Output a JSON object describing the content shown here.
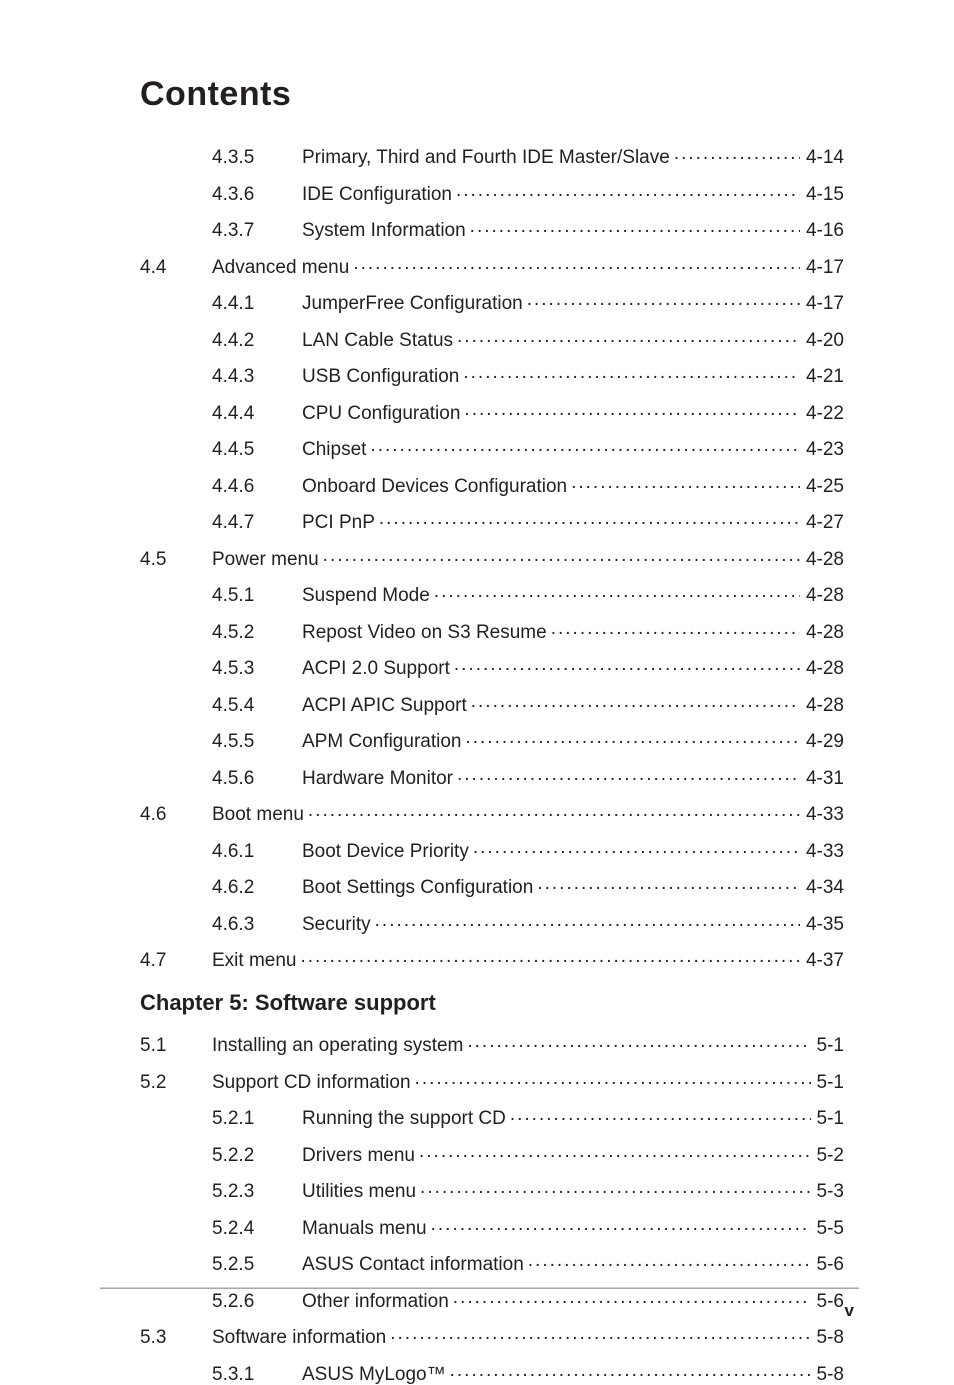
{
  "title": "Contents",
  "chapter5_heading": "Chapter 5: Software support",
  "footer_page": "v",
  "colors": {
    "text": "#231f20",
    "background": "#ffffff",
    "rule": "#b8b8b8"
  },
  "entries": [
    {
      "sec": "",
      "sub": "4.3.5",
      "title": "Primary, Third and Fourth IDE Master/Slave",
      "page": "4-14",
      "leader": true,
      "level": "sub"
    },
    {
      "sec": "",
      "sub": "4.3.6",
      "title": "IDE Configuration",
      "page": "4-15",
      "leader": true,
      "level": "sub"
    },
    {
      "sec": "",
      "sub": "4.3.7",
      "title": "System Information",
      "page": "4-16",
      "leader": true,
      "level": "sub"
    },
    {
      "sec": "4.4",
      "sub": "",
      "title": "Advanced menu",
      "page": "4-17",
      "leader": true,
      "level": "sec"
    },
    {
      "sec": "",
      "sub": "4.4.1",
      "title": "JumperFree Configuration",
      "page": "4-17",
      "leader": true,
      "level": "sub"
    },
    {
      "sec": "",
      "sub": "4.4.2",
      "title": "LAN Cable Status",
      "page": "4-20",
      "leader": true,
      "level": "sub"
    },
    {
      "sec": "",
      "sub": "4.4.3",
      "title": "USB Configuration",
      "page": "4-21",
      "leader": true,
      "level": "sub"
    },
    {
      "sec": "",
      "sub": "4.4.4",
      "title": "CPU Configuration",
      "page": "4-22",
      "leader": true,
      "level": "sub"
    },
    {
      "sec": "",
      "sub": "4.4.5",
      "title": "Chipset",
      "page": "4-23",
      "leader": true,
      "level": "sub"
    },
    {
      "sec": "",
      "sub": "4.4.6",
      "title": "Onboard Devices Configuration",
      "page": "4-25",
      "leader": true,
      "level": "sub"
    },
    {
      "sec": "",
      "sub": "4.4.7",
      "title": "PCI PnP",
      "page": "4-27",
      "leader": true,
      "level": "sub"
    },
    {
      "sec": "4.5",
      "sub": "",
      "title": "Power menu",
      "page": "4-28",
      "leader": true,
      "level": "sec"
    },
    {
      "sec": "",
      "sub": "4.5.1",
      "title": "Suspend Mode",
      "page": "4-28",
      "leader": true,
      "level": "sub"
    },
    {
      "sec": "",
      "sub": "4.5.2",
      "title": "Repost Video on S3 Resume",
      "page": "4-28",
      "leader": true,
      "level": "sub"
    },
    {
      "sec": "",
      "sub": "4.5.3",
      "title": "ACPI 2.0 Support",
      "page": "4-28",
      "leader": true,
      "level": "sub"
    },
    {
      "sec": "",
      "sub": "4.5.4",
      "title": "ACPI APIC Support",
      "page": "4-28",
      "leader": true,
      "level": "sub"
    },
    {
      "sec": "",
      "sub": "4.5.5",
      "title": "APM Configuration",
      "page": "4-29",
      "leader": true,
      "level": "sub"
    },
    {
      "sec": "",
      "sub": "4.5.6",
      "title": "Hardware Monitor",
      "page": "4-31",
      "leader": true,
      "level": "sub"
    },
    {
      "sec": "4.6",
      "sub": "",
      "title": "Boot menu",
      "page": "4-33",
      "leader": true,
      "level": "sec"
    },
    {
      "sec": "",
      "sub": "4.6.1",
      "title": "Boot Device Priority",
      "page": "4-33",
      "leader": true,
      "level": "sub"
    },
    {
      "sec": "",
      "sub": "4.6.2",
      "title": "Boot Settings Configuration",
      "page": "4-34",
      "leader": true,
      "level": "sub"
    },
    {
      "sec": "",
      "sub": "4.6.3",
      "title": "Security",
      "page": "4-35",
      "leader": true,
      "level": "sub"
    },
    {
      "sec": "4.7",
      "sub": "",
      "title": "Exit menu",
      "page": "4-37",
      "leader": true,
      "level": "sec"
    }
  ],
  "entries_ch5": [
    {
      "sec": "5.1",
      "sub": "",
      "title": "Installing an operating system",
      "page": "5-1",
      "leader": true,
      "level": "sec"
    },
    {
      "sec": "5.2",
      "sub": "",
      "title": "Support CD information",
      "page": "5-1",
      "leader": true,
      "level": "sec"
    },
    {
      "sec": "",
      "sub": "5.2.1",
      "title": "Running the support CD",
      "page": "5-1",
      "leader": true,
      "level": "sub"
    },
    {
      "sec": "",
      "sub": "5.2.2",
      "title": "Drivers menu",
      "page": "5-2",
      "leader": true,
      "level": "sub"
    },
    {
      "sec": "",
      "sub": "5.2.3",
      "title": "Utilities menu",
      "page": "5-3",
      "leader": true,
      "level": "sub"
    },
    {
      "sec": "",
      "sub": "5.2.4",
      "title": "Manuals menu",
      "page": "5-5",
      "leader": true,
      "level": "sub"
    },
    {
      "sec": "",
      "sub": "5.2.5",
      "title": "ASUS Contact information",
      "page": "5-6",
      "leader": true,
      "level": "sub"
    },
    {
      "sec": "",
      "sub": "5.2.6",
      "title": "Other information",
      "page": "5-6",
      "leader": true,
      "level": "sub"
    },
    {
      "sec": "5.3",
      "sub": "",
      "title": "Software information",
      "page": "5-8",
      "leader": true,
      "level": "sec"
    },
    {
      "sec": "",
      "sub": "5.3.1",
      "title": "ASUS MyLogo™",
      "page": "5-8",
      "leader": true,
      "level": "sub"
    }
  ]
}
